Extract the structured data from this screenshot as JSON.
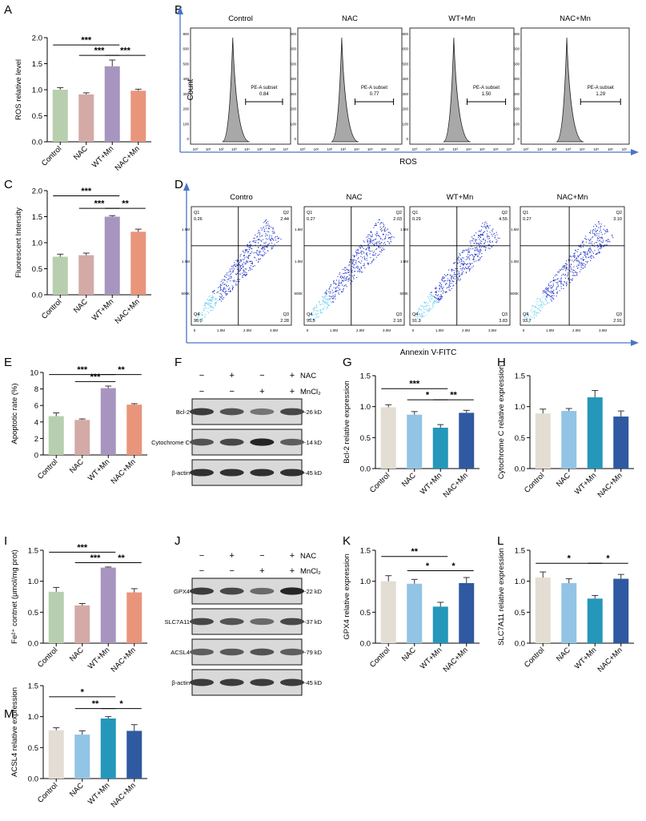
{
  "panel_labels": [
    "A",
    "B",
    "C",
    "D",
    "E",
    "F",
    "G",
    "H",
    "I",
    "J",
    "K",
    "L",
    "M"
  ],
  "colors": {
    "control_a": "#b7cfae",
    "nac_a": "#d3aaa6",
    "wtmn_a": "#a795c0",
    "nacmn_a": "#e8957b",
    "control_b": "#e3ddd3",
    "nac_b": "#92c4e5",
    "wtmn_b": "#2497ba",
    "nacmn_b": "#2f59a0",
    "flow_arrow": "#4a74c9",
    "dot_blue": "#2235c8",
    "dot_cyan": "#6fd0f0"
  },
  "chart_data": [
    {
      "id": "A",
      "type": "bar",
      "categories": [
        "Control",
        "NAC",
        "WT+Mn",
        "NAC+Mn"
      ],
      "values": [
        1.0,
        0.91,
        1.45,
        0.98
      ],
      "errors": [
        0.04,
        0.03,
        0.12,
        0.03
      ],
      "ylabel": "ROS relative level",
      "ylim": [
        0,
        2.0
      ],
      "yticks": [
        "0.0",
        "0.5",
        "1.0",
        "1.5",
        "2.0"
      ],
      "palette": "a",
      "significance": [
        {
          "from": 0,
          "to": 2,
          "label": "***",
          "level": 1.86
        },
        {
          "from": 1,
          "to": 2,
          "label": "***",
          "level": 1.66
        },
        {
          "from": 2,
          "to": 3,
          "label": "***",
          "level": 1.66
        }
      ]
    },
    {
      "id": "C",
      "type": "bar",
      "categories": [
        "Control",
        "NAC",
        "WT+Mn",
        "NAC+Mn"
      ],
      "values": [
        0.73,
        0.76,
        1.5,
        1.21
      ],
      "errors": [
        0.05,
        0.04,
        0.02,
        0.05
      ],
      "ylabel": "Fluorescent Intensity",
      "ylim": [
        0,
        2.0
      ],
      "yticks": [
        "0.0",
        "0.5",
        "1.0",
        "1.5",
        "2.0"
      ],
      "palette": "a",
      "significance": [
        {
          "from": 0,
          "to": 2,
          "label": "***",
          "level": 1.9
        },
        {
          "from": 1,
          "to": 2,
          "label": "***",
          "level": 1.66
        },
        {
          "from": 2,
          "to": 3,
          "label": "**",
          "level": 1.66
        }
      ]
    },
    {
      "id": "E",
      "type": "bar",
      "categories": [
        "Control",
        "NAC",
        "WT+Mn",
        "NAC+Mn"
      ],
      "values": [
        4.7,
        4.25,
        8.1,
        6.1
      ],
      "errors": [
        0.4,
        0.12,
        0.25,
        0.12
      ],
      "ylabel": "Apoptotic rate (%)",
      "ylim": [
        0,
        10
      ],
      "yticks": [
        "0",
        "2",
        "4",
        "6",
        "8",
        "10"
      ],
      "palette": "a",
      "significance": [
        {
          "from": 0,
          "to": 2,
          "label": "***",
          "level": 9.75
        },
        {
          "from": 1,
          "to": 2,
          "label": "***",
          "level": 8.9
        },
        {
          "from": 2,
          "to": 3,
          "label": "**",
          "level": 9.75
        }
      ]
    },
    {
      "id": "G",
      "type": "bar",
      "categories": [
        "Control",
        "NAC",
        "WT+Mn",
        "NAC+Mn"
      ],
      "values": [
        0.99,
        0.87,
        0.66,
        0.9
      ],
      "errors": [
        0.04,
        0.05,
        0.05,
        0.04
      ],
      "ylabel": "Bcl-2 relative expression",
      "ylim": [
        0,
        1.5
      ],
      "yticks": [
        "0.0",
        "0.5",
        "1.0",
        "1.5"
      ],
      "palette": "b",
      "significance": [
        {
          "from": 0,
          "to": 2,
          "label": "***",
          "level": 1.29
        },
        {
          "from": 1,
          "to": 2,
          "label": "*",
          "level": 1.11
        },
        {
          "from": 2,
          "to": 3,
          "label": "**",
          "level": 1.11
        }
      ]
    },
    {
      "id": "H",
      "type": "bar",
      "categories": [
        "Control",
        "NAC",
        "WT+Mn",
        "NAC+Mn"
      ],
      "values": [
        0.89,
        0.93,
        1.15,
        0.84
      ],
      "errors": [
        0.07,
        0.04,
        0.11,
        0.09
      ],
      "ylabel": "Cytochrome C relative expression",
      "ylim": [
        0,
        1.5
      ],
      "yticks": [
        "0.0",
        "0.5",
        "1.0",
        "1.5"
      ],
      "palette": "b",
      "significance": []
    },
    {
      "id": "I",
      "type": "bar",
      "categories": [
        "Control",
        "NAC",
        "WT+Mn",
        "NAC+Mn"
      ],
      "values": [
        0.83,
        0.61,
        1.22,
        0.82
      ],
      "errors": [
        0.07,
        0.03,
        0.01,
        0.06
      ],
      "ylabel": "Fe²⁺ contnet (μmol/mg prot)",
      "ylim": [
        0,
        1.5
      ],
      "yticks": [
        "0.0",
        "0.5",
        "1.0",
        "1.5"
      ],
      "palette": "a",
      "significance": [
        {
          "from": 0,
          "to": 2,
          "label": "***",
          "level": 1.47
        },
        {
          "from": 1,
          "to": 2,
          "label": "***",
          "level": 1.3
        },
        {
          "from": 2,
          "to": 3,
          "label": "**",
          "level": 1.3
        }
      ]
    },
    {
      "id": "K",
      "type": "bar",
      "categories": [
        "Control",
        "NAC",
        "WT+Mn",
        "NAC+Mn"
      ],
      "values": [
        1.0,
        0.96,
        0.59,
        0.97
      ],
      "errors": [
        0.09,
        0.07,
        0.07,
        0.09
      ],
      "ylabel": "GPX4 relative expression",
      "ylim": [
        0,
        1.5
      ],
      "yticks": [
        "0.0",
        "0.5",
        "1.0",
        "1.5"
      ],
      "palette": "b",
      "significance": [
        {
          "from": 0,
          "to": 2,
          "label": "**",
          "level": 1.4
        },
        {
          "from": 1,
          "to": 2,
          "label": "*",
          "level": 1.17
        },
        {
          "from": 2,
          "to": 3,
          "label": "*",
          "level": 1.17
        }
      ]
    },
    {
      "id": "L",
      "type": "bar",
      "categories": [
        "Control",
        "NAC",
        "WT+Mn",
        "NAC+Mn"
      ],
      "values": [
        1.06,
        0.97,
        0.72,
        1.04
      ],
      "errors": [
        0.09,
        0.07,
        0.05,
        0.07
      ],
      "ylabel": "SLC7A11 relative expression",
      "ylim": [
        0,
        1.5
      ],
      "yticks": [
        "0.0",
        "0.5",
        "1.0",
        "1.5"
      ],
      "palette": "b",
      "significance": [
        {
          "from": 0,
          "to": 2,
          "label": "*",
          "level": 1.29
        },
        {
          "from": 2,
          "to": 3,
          "label": "*",
          "level": 1.29
        }
      ]
    },
    {
      "id": "M",
      "type": "bar",
      "categories": [
        "Control",
        "NAC",
        "WT+Mn",
        "NAC+Mn"
      ],
      "values": [
        0.78,
        0.71,
        0.97,
        0.77
      ],
      "errors": [
        0.04,
        0.06,
        0.03,
        0.1
      ],
      "ylabel": "ACSL4 relative expression",
      "ylim": [
        0,
        1.5
      ],
      "yticks": [
        "0.0",
        "0.5",
        "1.0",
        "1.5"
      ],
      "palette": "b",
      "significance": [
        {
          "from": 0,
          "to": 2,
          "label": "*",
          "level": 1.32
        },
        {
          "from": 1,
          "to": 2,
          "label": "**",
          "level": 1.13
        },
        {
          "from": 2,
          "to": 3,
          "label": "*",
          "level": 1.13
        }
      ]
    }
  ],
  "flow_B": {
    "xlabel": "ROS",
    "ylabel": "Count",
    "yticks": [
      "0",
      "100",
      "200",
      "300",
      "400",
      "500",
      "600",
      "800"
    ],
    "xticks": [
      "10⁰",
      "10¹",
      "10²",
      "10³",
      "10⁴",
      "10⁵",
      "10⁶",
      "10⁷"
    ],
    "gate_label": "PE-A subset",
    "panels": [
      {
        "title": "Control",
        "value": "0.84"
      },
      {
        "title": "NAC",
        "value": "0.77"
      },
      {
        "title": "WT+Mn",
        "value": "1.50"
      },
      {
        "title": "NAC+Mn",
        "value": "1.29"
      }
    ]
  },
  "flow_D": {
    "xlabel": "Annexin V-FITC",
    "ylabel": "Propidium Iodide",
    "yticks": [
      "1.5M",
      "1.0M",
      "500K"
    ],
    "xticks": [
      "0",
      "1.0M",
      "2.0M",
      "3.0M"
    ],
    "panels": [
      {
        "title": "Contro",
        "q1": "0.26",
        "q2": "2.44",
        "q3": "2.28",
        "q4": "95.0"
      },
      {
        "title": "NAC",
        "q1": "0.27",
        "q2": "2.03",
        "q3": "2.18",
        "q4": "95.5"
      },
      {
        "title": "WT+Mn",
        "q1": "0.29",
        "q2": "4.55",
        "q3": "3.83",
        "q4": "91.3"
      },
      {
        "title": "NAC+Mn",
        "q1": "0.27",
        "q2": "3.10",
        "q3": "2.91",
        "q4": "93.7"
      }
    ]
  },
  "blots": {
    "F": {
      "nac_label": "NAC",
      "mn_label": "MnCl₂",
      "nac_signs": [
        "−",
        "+",
        "−",
        "+"
      ],
      "mn_signs": [
        "−",
        "−",
        "+",
        "+"
      ],
      "bands": [
        {
          "name": "Bcl-2",
          "kd": "-26 kD",
          "intensity": [
            0.85,
            0.75,
            0.6,
            0.8
          ]
        },
        {
          "name": "Cytochrome C",
          "kd": "-14 kD",
          "intensity": [
            0.75,
            0.8,
            0.95,
            0.7
          ]
        },
        {
          "name": "β-actin",
          "kd": "-45 kD",
          "intensity": [
            0.9,
            0.9,
            0.9,
            0.9
          ]
        }
      ]
    },
    "J": {
      "nac_label": "NAC",
      "mn_label": "MnCl₂",
      "nac_signs": [
        "−",
        "+",
        "−",
        "+"
      ],
      "mn_signs": [
        "−",
        "−",
        "+",
        "+"
      ],
      "bands": [
        {
          "name": "GPX4",
          "kd": "-22 kD",
          "intensity": [
            0.85,
            0.8,
            0.65,
            0.95
          ]
        },
        {
          "name": "SLC7A11",
          "kd": "-37 kD",
          "intensity": [
            0.8,
            0.75,
            0.65,
            0.8
          ]
        },
        {
          "name": "ACSL4",
          "kd": "-79 kD",
          "intensity": [
            0.7,
            0.72,
            0.75,
            0.7
          ]
        },
        {
          "name": "β-actin",
          "kd": "-45 kD",
          "intensity": [
            0.85,
            0.85,
            0.85,
            0.85
          ]
        }
      ]
    }
  }
}
